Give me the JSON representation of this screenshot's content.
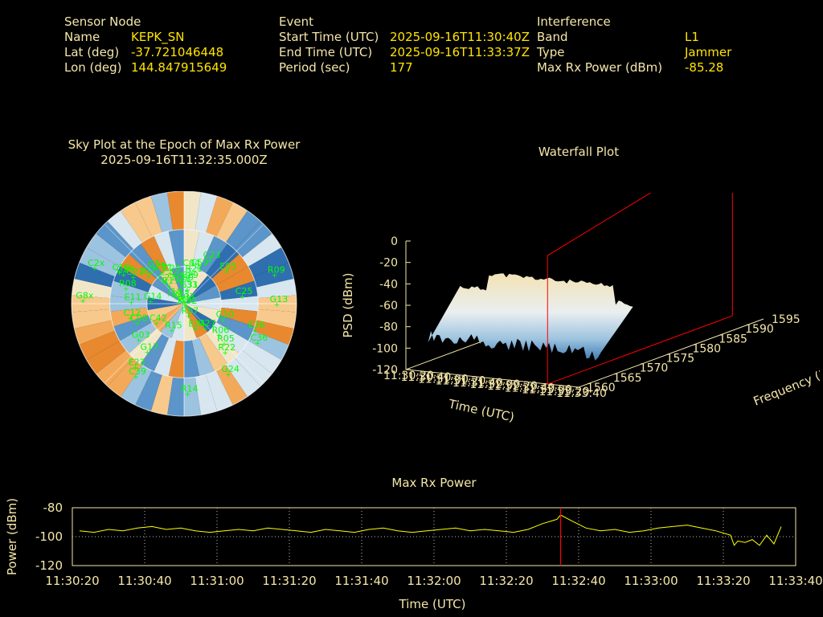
{
  "header": {
    "sensor": {
      "title": "Sensor Node",
      "rows": [
        {
          "key": "Name",
          "value": "KEPK_SN"
        },
        {
          "key": "Lat (deg)",
          "value": "-37.721046448"
        },
        {
          "key": "Lon (deg)",
          "value": "144.847915649"
        }
      ]
    },
    "event": {
      "title": "Event",
      "rows": [
        {
          "key": "Start Time (UTC)",
          "value": "2025-09-16T11:30:40Z"
        },
        {
          "key": "End Time (UTC)",
          "value": "2025-09-16T11:33:37Z"
        },
        {
          "key": "Period (sec)",
          "value": "177"
        }
      ]
    },
    "interference": {
      "title": "Interference",
      "rows": [
        {
          "key": "Band",
          "value": "L1"
        },
        {
          "key": "Type",
          "value": "Jammer"
        },
        {
          "key": "Max Rx Power (dBm)",
          "value": "-85.28"
        }
      ]
    }
  },
  "colors": {
    "label": "#f5e6a8",
    "value": "#ffe400",
    "satellite": "#00ff00",
    "cursor": "#ff0000",
    "line": "#ffff00"
  },
  "chart_data": [
    {
      "type": "scatter",
      "title": "Sky Plot at the Epoch of Max Rx Power",
      "subtitle": "2025-09-16T11:32:35.000Z",
      "satellites": [
        {
          "name": "E03",
          "az": 1,
          "el": 88
        },
        {
          "name": "G31",
          "az": 10,
          "el": 78
        },
        {
          "name": "C29",
          "az": 8,
          "el": 70
        },
        {
          "name": "R21",
          "az": 14,
          "el": 64
        },
        {
          "name": "C23",
          "az": 30,
          "el": 48
        },
        {
          "name": "G5x",
          "az": 320,
          "el": 52
        },
        {
          "name": "C01",
          "az": 325,
          "el": 58
        },
        {
          "name": "C20",
          "az": 335,
          "el": 62
        },
        {
          "name": "C21",
          "az": 318,
          "el": 66
        },
        {
          "name": "J02",
          "az": 308,
          "el": 52
        },
        {
          "name": "C59",
          "az": 350,
          "el": 70
        },
        {
          "name": "C60",
          "az": 356,
          "el": 72
        },
        {
          "name": "C04",
          "az": 8,
          "el": 60
        },
        {
          "name": "C59",
          "az": 20,
          "el": 58
        },
        {
          "name": "E05",
          "az": 52,
          "el": 46
        },
        {
          "name": "R09",
          "az": 72,
          "el": 12
        },
        {
          "name": "R17",
          "az": 320,
          "el": 70
        },
        {
          "name": "C27",
          "az": 298,
          "el": 42
        },
        {
          "name": "C28",
          "az": 296,
          "el": 34
        },
        {
          "name": "C2x",
          "az": 292,
          "el": 10
        },
        {
          "name": "C10",
          "az": 296,
          "el": 30
        },
        {
          "name": "J18",
          "az": 310,
          "el": 80
        },
        {
          "name": "J13",
          "az": 20,
          "el": 90
        },
        {
          "name": "C33",
          "az": 10,
          "el": 78
        },
        {
          "name": "C25",
          "az": 82,
          "el": 42
        },
        {
          "name": "G13",
          "az": 90,
          "el": 14
        },
        {
          "name": "R08",
          "az": 285,
          "el": 40
        },
        {
          "name": "R23",
          "az": 312,
          "el": 84
        },
        {
          "name": "E11",
          "az": 272,
          "el": 46
        },
        {
          "name": "G14",
          "az": 275,
          "el": 62
        },
        {
          "name": "C12",
          "az": 256,
          "el": 44
        },
        {
          "name": "C08",
          "az": 248,
          "el": 48
        },
        {
          "name": "C42",
          "az": 236,
          "el": 62
        },
        {
          "name": "R07",
          "az": 162,
          "el": 80
        },
        {
          "name": "E24",
          "az": 156,
          "el": 68
        },
        {
          "name": "G27",
          "az": 140,
          "el": 64
        },
        {
          "name": "G10",
          "az": 112,
          "el": 56
        },
        {
          "name": "E36",
          "az": 110,
          "el": 28
        },
        {
          "name": "C36",
          "az": 118,
          "el": 22
        },
        {
          "name": "R05",
          "az": 135,
          "el": 44
        },
        {
          "name": "R06",
          "az": 132,
          "el": 52
        },
        {
          "name": "R22",
          "az": 140,
          "el": 38
        },
        {
          "name": "R15",
          "az": 206,
          "el": 66
        },
        {
          "name": "G03",
          "az": 232,
          "el": 42
        },
        {
          "name": "G17",
          "az": 218,
          "el": 40
        },
        {
          "name": "E23",
          "az": 218,
          "el": 24
        },
        {
          "name": "C39",
          "az": 214,
          "el": 18
        },
        {
          "name": "G24",
          "az": 148,
          "el": 22
        },
        {
          "name": "R14",
          "az": 178,
          "el": 16
        },
        {
          "name": "G8x",
          "az": 272,
          "el": 6
        },
        {
          "name": "G32",
          "az": 138,
          "el": 88
        }
      ]
    },
    {
      "type": "area",
      "title": "Waterfall Plot",
      "zlabel": "PSD (dBm)",
      "xlabel": "Time (UTC)",
      "ylabel": "Frequency (MHz)",
      "z_ticks": [
        "0",
        "-20",
        "-40",
        "-60",
        "-80",
        "-100",
        "-120"
      ],
      "x_ticks": [
        "11:30:20",
        "11:30:40",
        "11:31:00",
        "11:31:20",
        "11:31:40",
        "11:32:00",
        "11:32:20",
        "11:32:40",
        "11:33:00",
        "11:33:20",
        "11:33:40"
      ],
      "y_ticks": [
        "1560",
        "1565",
        "1570",
        "1575",
        "1580",
        "1585",
        "1590",
        "1595"
      ],
      "zlim": [
        -120,
        0
      ],
      "ylim": [
        1560,
        1595
      ]
    },
    {
      "type": "line",
      "title": "Max Rx Power",
      "xlabel": "Time (UTC)",
      "ylabel": "Power (dBm)",
      "x_ticks": [
        "11:30:20",
        "11:30:40",
        "11:31:00",
        "11:31:20",
        "11:31:40",
        "11:32:00",
        "11:32:20",
        "11:32:40",
        "11:33:00",
        "11:33:20",
        "11:33:40"
      ],
      "y_ticks": [
        "-80",
        "-100",
        "-120"
      ],
      "xlim_sec": [
        0,
        200
      ],
      "ylim": [
        -120,
        -80
      ],
      "grid": true,
      "marker_time_sec": 135,
      "series": [
        {
          "x": [
            2,
            6,
            10,
            14,
            18,
            22,
            26,
            30,
            34,
            38,
            42,
            46,
            50,
            54,
            58,
            62,
            66,
            70,
            74,
            78,
            82,
            86,
            90,
            94,
            98,
            102,
            106,
            110,
            114,
            118,
            122,
            126,
            130,
            134,
            135,
            138,
            142,
            146,
            150,
            154,
            158,
            162,
            166,
            170,
            174,
            178,
            182,
            183,
            184,
            186,
            188,
            190,
            192,
            194,
            196
          ],
          "y": [
            -96,
            -97,
            -95,
            -96,
            -94,
            -93,
            -95,
            -94,
            -96,
            -97,
            -96,
            -95,
            -96,
            -94,
            -95,
            -96,
            -97,
            -95,
            -96,
            -97,
            -95,
            -94,
            -96,
            -97,
            -96,
            -95,
            -94,
            -96,
            -95,
            -96,
            -97,
            -95,
            -91,
            -88,
            -85,
            -89,
            -94,
            -96,
            -95,
            -97,
            -96,
            -94,
            -93,
            -92,
            -94,
            -96,
            -99,
            -106,
            -103,
            -104,
            -102,
            -106,
            -99,
            -105,
            -93
          ]
        }
      ]
    }
  ]
}
